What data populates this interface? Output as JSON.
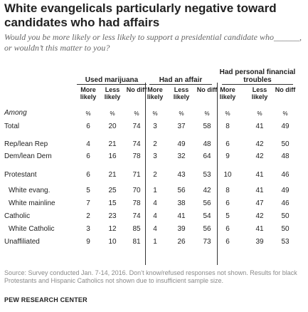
{
  "header": {
    "title": "White evangelicals particularly negative toward candidates who had affairs",
    "subtitle": "Would you be more likely or less likely to support a presidential candidate who______, or wouldn’t this matter to you?"
  },
  "chart_data": {
    "type": "table",
    "groups": [
      {
        "name": "Used marijuana",
        "columns": [
          "More likely",
          "Less likely",
          "No diff"
        ]
      },
      {
        "name": "Had an affair",
        "columns": [
          "More likely",
          "Less likely",
          "No diff"
        ]
      },
      {
        "name": "Had personal financial troubles",
        "columns": [
          "More likely",
          "Less likely",
          "No diff"
        ]
      }
    ],
    "units_row": {
      "label": "Among",
      "unit": "%"
    },
    "rows": [
      {
        "label": "Total",
        "indent": false,
        "values": [
          6,
          20,
          74,
          3,
          37,
          58,
          8,
          41,
          49
        ]
      },
      {
        "label": "Rep/lean Rep",
        "indent": false,
        "values": [
          4,
          21,
          74,
          2,
          49,
          48,
          6,
          42,
          50
        ]
      },
      {
        "label": "Dem/lean Dem",
        "indent": false,
        "values": [
          6,
          16,
          78,
          3,
          32,
          64,
          9,
          42,
          48
        ]
      },
      {
        "label": "Protestant",
        "indent": false,
        "values": [
          6,
          21,
          71,
          2,
          43,
          53,
          10,
          41,
          46
        ]
      },
      {
        "label": "White evang.",
        "indent": true,
        "values": [
          5,
          25,
          70,
          1,
          56,
          42,
          8,
          41,
          49
        ]
      },
      {
        "label": "White mainline",
        "indent": true,
        "values": [
          7,
          15,
          78,
          4,
          38,
          56,
          6,
          47,
          46
        ]
      },
      {
        "label": "Catholic",
        "indent": false,
        "values": [
          2,
          23,
          74,
          4,
          41,
          54,
          5,
          42,
          50
        ]
      },
      {
        "label": "White Catholic",
        "indent": true,
        "values": [
          3,
          12,
          85,
          4,
          39,
          56,
          6,
          41,
          50
        ]
      },
      {
        "label": "Unaffiliated",
        "indent": false,
        "values": [
          9,
          10,
          81,
          1,
          26,
          73,
          6,
          39,
          53
        ]
      }
    ]
  },
  "footer": {
    "source": "Source: Survey conducted Jan. 7-14, 2016. Don’t know/refused responses not shown. Results for black Protestants and Hispanic Catholics not shown due to insufficient sample size.",
    "brand": "PEW RESEARCH CENTER"
  }
}
